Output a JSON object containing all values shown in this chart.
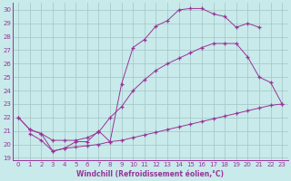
{
  "background_color": "#c8eaea",
  "grid_color": "#a8caca",
  "line_color": "#993399",
  "xlim": [
    -0.5,
    23.5
  ],
  "ylim": [
    18.8,
    30.5
  ],
  "xticks": [
    0,
    1,
    2,
    3,
    4,
    5,
    6,
    7,
    8,
    9,
    10,
    11,
    12,
    13,
    14,
    15,
    16,
    17,
    18,
    19,
    20,
    21,
    22,
    23
  ],
  "yticks": [
    19,
    20,
    21,
    22,
    23,
    24,
    25,
    26,
    27,
    28,
    29,
    30
  ],
  "xlabel": "Windchill (Refroidissement éolien,°C)",
  "line1_x": [
    0,
    1,
    2,
    3,
    4,
    5,
    6,
    7,
    8,
    9,
    10,
    11,
    12,
    13,
    14,
    15,
    16,
    17,
    18,
    19,
    20,
    21,
    22,
    23
  ],
  "line1_y": [
    22,
    21.1,
    20.8,
    19.5,
    19.7,
    20.2,
    20.2,
    21.0,
    20.2,
    24.5,
    27.2,
    27.8,
    28.8,
    29.2,
    30.0,
    30.1,
    30.1,
    29.7,
    29.5,
    28.7,
    29.0,
    28.7,
    null,
    null
  ],
  "line2_x": [
    0,
    1,
    2,
    3,
    4,
    5,
    6,
    7,
    8,
    9,
    10,
    11,
    12,
    13,
    14,
    15,
    16,
    17,
    18,
    19,
    20,
    21,
    22,
    23
  ],
  "line2_y": [
    22,
    21.1,
    20.8,
    20.3,
    20.3,
    20.3,
    20.5,
    20.9,
    22.0,
    22.8,
    24.0,
    24.8,
    25.5,
    26.0,
    26.4,
    26.8,
    27.2,
    27.5,
    27.5,
    27.5,
    26.5,
    25.0,
    24.6,
    23.0
  ],
  "line3_x": [
    1,
    2,
    3,
    4,
    5,
    6,
    7,
    8,
    9,
    10,
    11,
    12,
    13,
    14,
    15,
    16,
    17,
    18,
    19,
    20,
    21,
    22,
    23
  ],
  "line3_y": [
    20.8,
    20.3,
    19.5,
    19.7,
    19.8,
    19.9,
    20.0,
    20.2,
    20.3,
    20.5,
    20.7,
    20.9,
    21.1,
    21.3,
    21.5,
    21.7,
    21.9,
    22.1,
    22.3,
    22.5,
    22.7,
    22.9,
    23.0
  ]
}
